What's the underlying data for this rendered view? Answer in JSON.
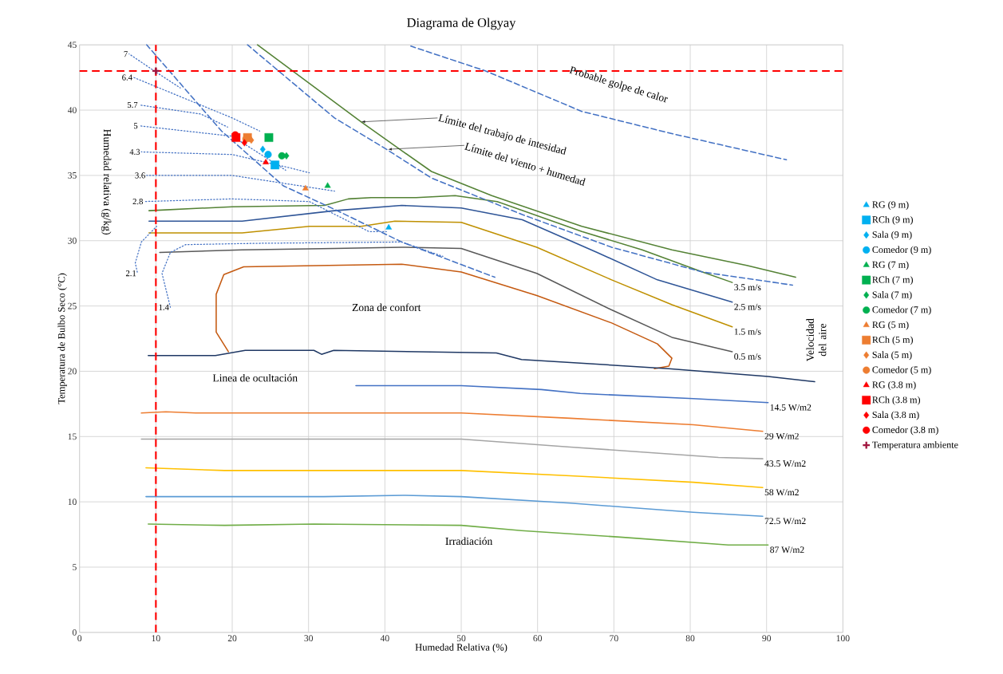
{
  "chart_data": {
    "type": "line",
    "title": "Diagrama  de Olgyay",
    "xlabel": "Humedad Relativa (%)",
    "ylabel": "Temperatura de Bulbo Seco (°C)",
    "xlim": [
      0,
      100
    ],
    "xticks": [
      0,
      10,
      20,
      30,
      40,
      50,
      60,
      70,
      80,
      90,
      100
    ],
    "ylim": [
      0,
      45
    ],
    "yticks": [
      0,
      5,
      10,
      15,
      20,
      25,
      30,
      35,
      40,
      45
    ],
    "grid": true,
    "legend": "right",
    "ref_lines": [
      {
        "axis": "x",
        "value": 10,
        "color": "#ff0000",
        "line_style": "dashed"
      },
      {
        "axis": "y",
        "value": 43,
        "color": "#ff0000",
        "line_style": "dashed"
      }
    ],
    "annotations": [
      "Probable golpe de calor",
      {
        "text": "Límite del trabajo de intesidad",
        "x": 36.9,
        "y": 39.1
      },
      {
        "text": "Límite del viento + humedad",
        "x": 40.4,
        "y": 37.0
      },
      "Zona de confort",
      "Linea de ocultación",
      "Irradiación",
      "Velocidad del aire",
      "Humedad relativa (g/kg)"
    ],
    "series": [
      {
        "name": "3.5 m/s",
        "color": "#548235",
        "line_style": "solid",
        "x": [
          9.1,
          20,
          32.1,
          35.2,
          38.2,
          44.1,
          49.2,
          54.7,
          65.8,
          73.7,
          81.6,
          85.5
        ],
        "values": [
          32.3,
          32.6,
          32.7,
          33.2,
          33.3,
          33.3,
          33.45,
          33.0,
          30.7,
          29.3,
          27.6,
          26.8
        ]
      },
      {
        "name": "2.5 m/s",
        "color": "#2f5597",
        "line_style": "solid",
        "x": [
          9.1,
          21.3,
          33.4,
          42.2,
          50,
          58,
          67.8,
          75.7,
          85.5
        ],
        "values": [
          31.5,
          31.5,
          32.3,
          32.7,
          32.5,
          31.6,
          29.1,
          27.0,
          25.3
        ]
      },
      {
        "name": "1.5 m/s",
        "color": "#bf9000",
        "line_style": "solid",
        "x": [
          9.1,
          21.3,
          30.1,
          36.9,
          41.3,
          50,
          59.9,
          69.7,
          77.6,
          85.5
        ],
        "values": [
          30.6,
          30.6,
          31.1,
          31.1,
          31.5,
          31.4,
          29.5,
          27.0,
          25.1,
          23.4
        ]
      },
      {
        "name": "0.5 m/s",
        "color": "#595959",
        "line_style": "solid",
        "x": [
          10.5,
          21.3,
          33.4,
          42.2,
          50,
          59.9,
          69.7,
          77.6,
          85.5
        ],
        "values": [
          29.1,
          29.3,
          29.4,
          29.5,
          29.4,
          27.5,
          24.7,
          22.6,
          21.5
        ]
      },
      {
        "color": "#c55a11",
        "line_style": "solid",
        "x": [
          19.5,
          17.9,
          17.9,
          18.9,
          21.5,
          42.2,
          50,
          59.9,
          69.7,
          75.7,
          77.6,
          77.2,
          75.3
        ],
        "values": [
          21.5,
          23.0,
          25.9,
          27.4,
          28.0,
          28.2,
          27.6,
          25.8,
          23.7,
          22.1,
          21.0,
          20.4,
          20.2
        ]
      },
      {
        "color": "#1f3864",
        "line_style": "solid",
        "x": [
          9.0,
          17.8,
          21.7,
          30.7,
          31.7,
          33.3,
          54.6,
          57.9,
          77.2,
          90.2,
          96.3
        ],
        "values": [
          21.2,
          21.2,
          21.6,
          21.6,
          21.3,
          21.6,
          21.4,
          20.9,
          20.2,
          19.6,
          19.2
        ]
      },
      {
        "name": "14.5 W/m2",
        "color": "#4472c4",
        "line_style": "solid",
        "x": [
          36.2,
          50,
          60.5,
          65.6,
          80.4,
          90.2
        ],
        "values": [
          18.9,
          18.9,
          18.6,
          18.3,
          17.9,
          17.6
        ]
      },
      {
        "name": "29 W/m2",
        "color": "#ed7d31",
        "line_style": "solid",
        "x": [
          8.1,
          11.3,
          15.2,
          50,
          64.3,
          80.4,
          89.5
        ],
        "values": [
          16.8,
          16.9,
          16.8,
          16.8,
          16.4,
          15.9,
          15.4
        ]
      },
      {
        "name": "43.5 W/m2",
        "color": "#a5a5a5",
        "line_style": "solid",
        "x": [
          8.1,
          50,
          64.3,
          83.7,
          89.5
        ],
        "values": [
          14.8,
          14.8,
          14.2,
          13.4,
          13.3
        ]
      },
      {
        "name": "58 W/m2",
        "color": "#ffc000",
        "line_style": "solid",
        "x": [
          8.7,
          19.0,
          50,
          64.3,
          80.4,
          89.5
        ],
        "values": [
          12.6,
          12.4,
          12.4,
          12.0,
          11.5,
          11.1
        ]
      },
      {
        "name": "72.5 W/m2",
        "color": "#5b9bd5",
        "line_style": "solid",
        "x": [
          8.7,
          32,
          42.4,
          50,
          64.3,
          80.4,
          89.5
        ],
        "values": [
          10.4,
          10.4,
          10.5,
          10.4,
          9.9,
          9.2,
          8.9
        ]
      },
      {
        "name": "87 W/m2",
        "color": "#70ad47",
        "line_style": "solid",
        "x": [
          9.0,
          19.0,
          30.7,
          50,
          57.9,
          70.8,
          85.0,
          90.2
        ],
        "values": [
          8.3,
          8.2,
          8.3,
          8.2,
          7.8,
          7.3,
          6.7,
          6.7
        ]
      },
      {
        "color": "#548235",
        "line_style": "solid",
        "x": [
          23.3,
          36.9,
          42.2,
          46.1,
          54,
          65.8,
          77.6,
          87.4,
          93.8
        ],
        "values": [
          45,
          39.1,
          36.9,
          35.3,
          33.45,
          31.1,
          29.3,
          28.1,
          27.2
        ]
      },
      {
        "color": "#4472c4",
        "line_style": "dashed",
        "x": [
          22,
          33.4,
          40.2,
          46.1,
          58,
          69.7,
          81.6,
          93.4
        ],
        "values": [
          45,
          39.4,
          37.0,
          34.8,
          32.0,
          29.5,
          27.6,
          26.6
        ]
      },
      {
        "color": "#4472c4",
        "line_style": "dashed",
        "x": [
          43.4,
          53.2,
          65.8,
          77.6,
          92.6
        ],
        "values": [
          44.9,
          43.0,
          39.9,
          38.2,
          36.2
        ]
      },
      {
        "color": "#4472c4",
        "line_style": "dashed",
        "x": [
          8.8,
          18.6,
          26.7,
          33.4,
          42.2,
          54.4
        ],
        "values": [
          45,
          38.4,
          34.2,
          32.4,
          29.9,
          27.2
        ]
      },
      {
        "name": "7",
        "color": "#4472c4",
        "line_style": "dotted",
        "x": [
          6.5,
          9.8,
          13.2
        ],
        "values": [
          44.3,
          43.0,
          41.7
        ]
      },
      {
        "name": "6.4",
        "color": "#4472c4",
        "line_style": "dotted",
        "x": [
          7.1,
          20,
          23.6
        ],
        "values": [
          42.5,
          39.4,
          38.4
        ]
      },
      {
        "name": "5.7",
        "color": "#4472c4",
        "line_style": "dotted",
        "x": [
          7.8,
          15.9,
          19.4
        ],
        "values": [
          40.4,
          39.7,
          38.7
        ]
      },
      {
        "name": "5",
        "color": "#4472c4",
        "line_style": "dotted",
        "x": [
          7.8,
          20,
          27
        ],
        "values": [
          38.8,
          38.0,
          35.4
        ]
      },
      {
        "name": "4.3",
        "color": "#4472c4",
        "line_style": "dotted",
        "x": [
          8.1,
          20,
          27.4,
          30.1
        ],
        "values": [
          36.8,
          36.6,
          35.6,
          35.2
        ]
      },
      {
        "name": "3.6",
        "color": "#4472c4",
        "line_style": "dotted",
        "x": [
          8.8,
          20,
          26.7,
          33.4
        ],
        "values": [
          35.0,
          35.0,
          34.4,
          33.8
        ]
      },
      {
        "name": "2.8",
        "color": "#4472c4",
        "line_style": "dotted",
        "x": [
          8.5,
          20,
          30.1,
          37.9,
          40.2
        ],
        "values": [
          33.0,
          33.2,
          33.0,
          30.7,
          30.7
        ]
      },
      {
        "name": "2.1",
        "color": "#4472c4",
        "line_style": "dotted",
        "x": [
          7.6,
          7.3,
          8.1,
          10.1
        ],
        "values": [
          27.5,
          28.3,
          29.9,
          31.1
        ]
      },
      {
        "name": "1.4",
        "color": "#4472c4",
        "line_style": "dotted",
        "x": [
          11.9,
          10.8,
          11.9,
          13.9,
          23.3,
          42.2,
          47.6
        ],
        "values": [
          24.9,
          27.5,
          29.1,
          29.7,
          29.8,
          29.9,
          28.8
        ]
      },
      {
        "type": "scatter",
        "name": "RG (9 m)",
        "color": "#00b0f0",
        "marker": "triangle",
        "x": [
          40.5
        ],
        "values": [
          31.0
        ]
      },
      {
        "type": "scatter",
        "name": "RCh (9 m)",
        "color": "#00b0f0",
        "marker": "square",
        "x": [
          25.6
        ],
        "values": [
          35.8
        ]
      },
      {
        "type": "scatter",
        "name": "Sala (9 m)",
        "color": "#00b0f0",
        "marker": "diamond",
        "x": [
          24.0
        ],
        "values": [
          37.0
        ]
      },
      {
        "type": "scatter",
        "name": "Comedor (9 m)",
        "color": "#00b0f0",
        "marker": "circle",
        "x": [
          24.7
        ],
        "values": [
          36.6
        ]
      },
      {
        "type": "scatter",
        "name": "RG (7 m)",
        "color": "#00b050",
        "marker": "triangle",
        "x": [
          32.5
        ],
        "values": [
          34.2
        ]
      },
      {
        "type": "scatter",
        "name": "RCh (7 m)",
        "color": "#00b050",
        "marker": "square",
        "x": [
          24.8
        ],
        "values": [
          37.9
        ]
      },
      {
        "type": "scatter",
        "name": "Sala (7 m)",
        "color": "#00b050",
        "marker": "diamond",
        "x": [
          27.1
        ],
        "values": [
          36.5
        ]
      },
      {
        "type": "scatter",
        "name": "Comedor (7 m)",
        "color": "#00b050",
        "marker": "circle",
        "x": [
          26.5
        ],
        "values": [
          36.5
        ]
      },
      {
        "type": "scatter",
        "name": "RG (5 m)",
        "color": "#ed7d31",
        "marker": "triangle",
        "x": [
          29.6
        ],
        "values": [
          34.0
        ]
      },
      {
        "type": "scatter",
        "name": "RCh (5 m)",
        "color": "#ed7d31",
        "marker": "square",
        "x": [
          22.0
        ],
        "values": [
          37.9
        ]
      },
      {
        "type": "scatter",
        "name": "Sala (5 m)",
        "color": "#ed7d31",
        "marker": "diamond",
        "x": [
          22.5
        ],
        "values": [
          37.7
        ]
      },
      {
        "type": "scatter",
        "name": "Comedor (5 m)",
        "color": "#ed7d31",
        "marker": "circle",
        "x": [
          21.8
        ],
        "values": [
          37.8
        ]
      },
      {
        "type": "scatter",
        "name": "RG (3.8 m)",
        "color": "#ff0000",
        "marker": "triangle",
        "x": [
          24.4
        ],
        "values": [
          36.0
        ]
      },
      {
        "type": "scatter",
        "name": "RCh (3.8 m)",
        "color": "#ff0000",
        "marker": "square",
        "x": [
          20.5
        ],
        "values": [
          37.9
        ]
      },
      {
        "type": "scatter",
        "name": "Sala (3.8 m)",
        "color": "#ff0000",
        "marker": "diamond",
        "x": [
          21.6
        ],
        "values": [
          37.5
        ]
      },
      {
        "type": "scatter",
        "name": "Comedor (3.8 m)",
        "color": "#ff0000",
        "marker": "circle",
        "x": [
          20.4
        ],
        "values": [
          38.1
        ]
      },
      {
        "type": "scatter",
        "name": "Temperatura ambiente",
        "color": "#a0153e",
        "marker": "cross",
        "x": [
          10
        ],
        "values": [
          43
        ]
      }
    ]
  }
}
